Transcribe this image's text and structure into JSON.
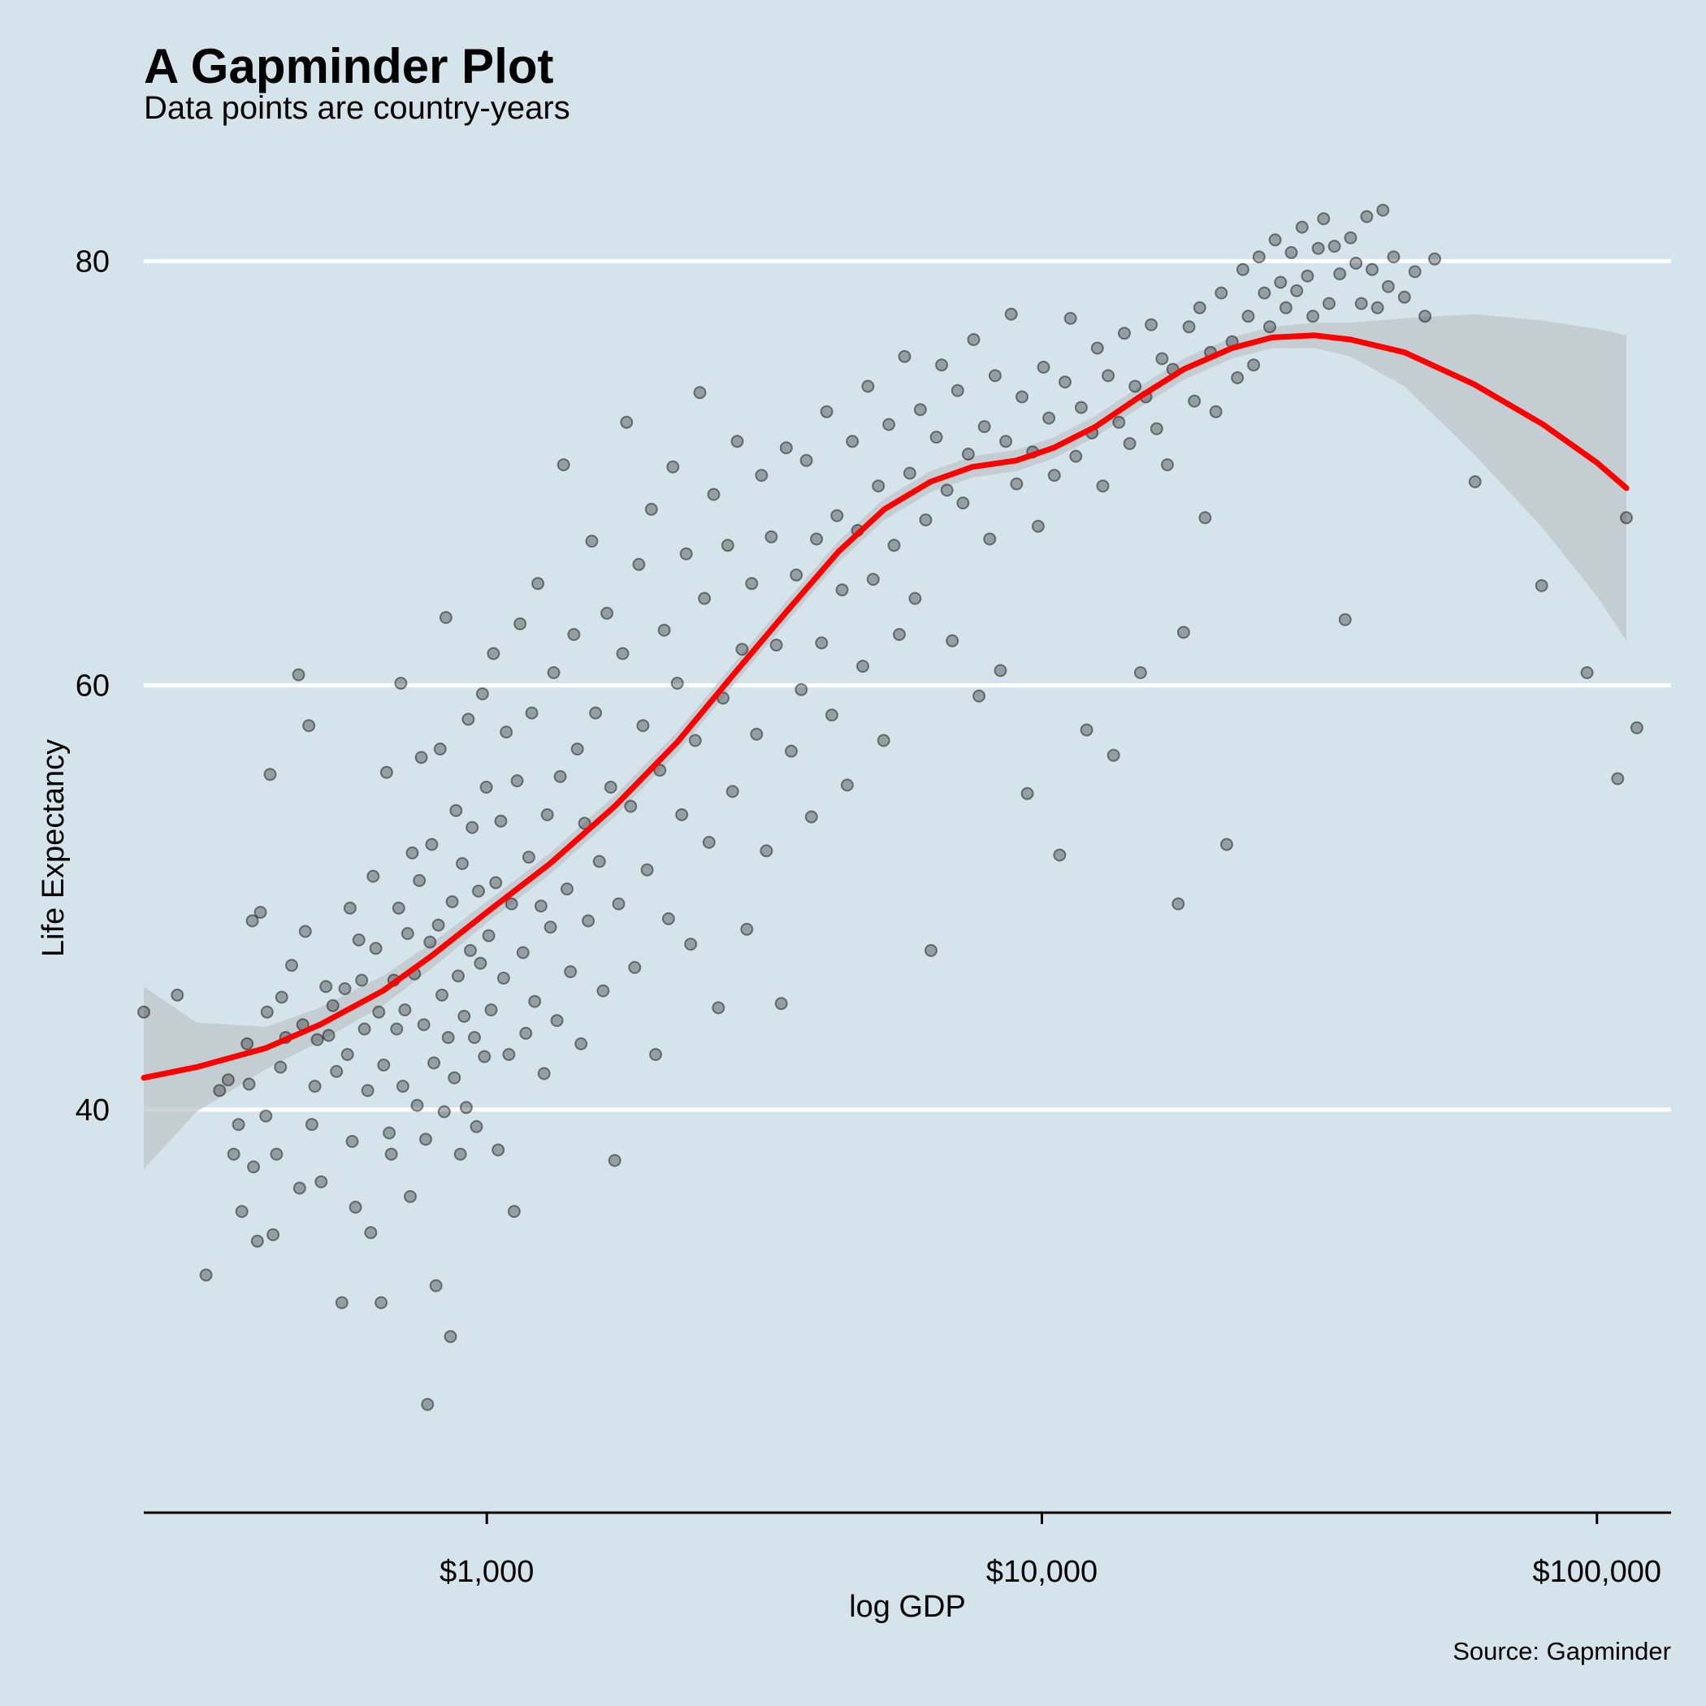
{
  "chart_data": {
    "type": "scatter",
    "title": "A Gapminder Plot",
    "subtitle": "Data points are country-years",
    "caption": "Source: Gapminder",
    "xlabel": "log GDP",
    "ylabel": "Life Expectancy",
    "x_scale": "log10",
    "xlim": [
      241,
      136000
    ],
    "ylim": [
      21,
      83.5
    ],
    "x_ticks": [
      {
        "value": 1000,
        "label": "$1,000"
      },
      {
        "value": 10000,
        "label": "$10,000"
      },
      {
        "value": 100000,
        "label": "$100,000"
      }
    ],
    "y_ticks": [
      {
        "value": 40,
        "label": "40"
      },
      {
        "value": 60,
        "label": "60"
      },
      {
        "value": 80,
        "label": "80"
      }
    ],
    "grid": {
      "major_y": true,
      "major_x": false,
      "color": "#ffffff"
    },
    "colors": {
      "background": "#d5e4eb",
      "points": "#000000",
      "smooth_line": "#ff0000",
      "confidence_band": "#bdc5ca",
      "axis_line": "#000000"
    },
    "point_opacity": 0.3,
    "point_sample_note": "Country-year points are estimated from the scatter; outliers and key clusters included.",
    "points": [
      [
        241,
        44.6
      ],
      [
        277,
        45.4
      ],
      [
        312,
        32.2
      ],
      [
        330,
        40.9
      ],
      [
        342,
        41.4
      ],
      [
        350,
        37.9
      ],
      [
        357,
        39.3
      ],
      [
        362,
        35.2
      ],
      [
        370,
        43.1
      ],
      [
        373,
        41.2
      ],
      [
        378,
        48.9
      ],
      [
        380,
        37.3
      ],
      [
        386,
        33.8
      ],
      [
        391,
        49.3
      ],
      [
        400,
        39.7
      ],
      [
        402,
        44.6
      ],
      [
        407,
        55.8
      ],
      [
        412,
        34.1
      ],
      [
        418,
        37.9
      ],
      [
        425,
        42.0
      ],
      [
        427,
        45.3
      ],
      [
        434,
        43.4
      ],
      [
        445,
        46.8
      ],
      [
        458,
        60.5
      ],
      [
        460,
        36.3
      ],
      [
        466,
        44.0
      ],
      [
        471,
        48.4
      ],
      [
        478,
        58.1
      ],
      [
        484,
        39.3
      ],
      [
        490,
        41.1
      ],
      [
        495,
        43.3
      ],
      [
        503,
        36.6
      ],
      [
        513,
        45.8
      ],
      [
        519,
        43.5
      ],
      [
        528,
        44.9
      ],
      [
        536,
        41.8
      ],
      [
        548,
        30.9
      ],
      [
        555,
        45.7
      ],
      [
        561,
        42.6
      ],
      [
        567,
        49.5
      ],
      [
        572,
        38.5
      ],
      [
        580,
        35.4
      ],
      [
        588,
        48.0
      ],
      [
        595,
        46.1
      ],
      [
        602,
        43.8
      ],
      [
        610,
        40.9
      ],
      [
        618,
        34.2
      ],
      [
        624,
        51.0
      ],
      [
        631,
        47.6
      ],
      [
        639,
        44.6
      ],
      [
        645,
        30.9
      ],
      [
        652,
        42.1
      ],
      [
        660,
        55.9
      ],
      [
        667,
        38.9
      ],
      [
        673,
        37.9
      ],
      [
        680,
        46.1
      ],
      [
        688,
        43.8
      ],
      [
        694,
        49.5
      ],
      [
        700,
        60.1
      ],
      [
        706,
        41.1
      ],
      [
        712,
        44.7
      ],
      [
        720,
        48.3
      ],
      [
        728,
        35.9
      ],
      [
        734,
        52.1
      ],
      [
        741,
        46.4
      ],
      [
        749,
        40.2
      ],
      [
        756,
        50.8
      ],
      [
        762,
        56.6
      ],
      [
        770,
        44.0
      ],
      [
        776,
        38.6
      ],
      [
        782,
        26.1
      ],
      [
        790,
        47.9
      ],
      [
        796,
        52.5
      ],
      [
        803,
        42.2
      ],
      [
        810,
        31.7
      ],
      [
        818,
        48.7
      ],
      [
        824,
        57.0
      ],
      [
        830,
        45.4
      ],
      [
        838,
        39.9
      ],
      [
        844,
        63.2
      ],
      [
        852,
        43.4
      ],
      [
        860,
        29.3
      ],
      [
        866,
        49.8
      ],
      [
        874,
        41.5
      ],
      [
        880,
        54.1
      ],
      [
        888,
        46.3
      ],
      [
        896,
        37.9
      ],
      [
        903,
        51.6
      ],
      [
        910,
        44.4
      ],
      [
        918,
        40.1
      ],
      [
        926,
        58.4
      ],
      [
        934,
        47.5
      ],
      [
        941,
        53.3
      ],
      [
        950,
        43.4
      ],
      [
        958,
        39.2
      ],
      [
        966,
        50.3
      ],
      [
        974,
        46.9
      ],
      [
        982,
        59.6
      ],
      [
        990,
        42.5
      ],
      [
        998,
        55.2
      ],
      [
        1008,
        48.2
      ],
      [
        1018,
        44.7
      ],
      [
        1028,
        61.5
      ],
      [
        1038,
        50.7
      ],
      [
        1048,
        38.1
      ],
      [
        1060,
        53.6
      ],
      [
        1072,
        46.2
      ],
      [
        1084,
        57.8
      ],
      [
        1096,
        42.6
      ],
      [
        1108,
        49.7
      ],
      [
        1120,
        35.2
      ],
      [
        1134,
        55.5
      ],
      [
        1148,
        62.9
      ],
      [
        1162,
        47.4
      ],
      [
        1176,
        43.6
      ],
      [
        1190,
        51.9
      ],
      [
        1205,
        58.7
      ],
      [
        1220,
        45.1
      ],
      [
        1236,
        64.8
      ],
      [
        1252,
        49.6
      ],
      [
        1268,
        41.7
      ],
      [
        1285,
        53.9
      ],
      [
        1302,
        48.6
      ],
      [
        1320,
        60.6
      ],
      [
        1338,
        44.2
      ],
      [
        1356,
        55.7
      ],
      [
        1375,
        70.4
      ],
      [
        1395,
        50.4
      ],
      [
        1415,
        46.5
      ],
      [
        1435,
        62.4
      ],
      [
        1456,
        57.0
      ],
      [
        1478,
        43.1
      ],
      [
        1500,
        53.5
      ],
      [
        1523,
        48.9
      ],
      [
        1546,
        66.8
      ],
      [
        1570,
        58.7
      ],
      [
        1595,
        51.7
      ],
      [
        1620,
        45.6
      ],
      [
        1646,
        63.4
      ],
      [
        1672,
        55.2
      ],
      [
        1700,
        37.6
      ],
      [
        1728,
        49.7
      ],
      [
        1757,
        61.5
      ],
      [
        1786,
        72.4
      ],
      [
        1816,
        54.3
      ],
      [
        1847,
        46.7
      ],
      [
        1879,
        65.7
      ],
      [
        1911,
        58.1
      ],
      [
        1945,
        51.3
      ],
      [
        1979,
        68.3
      ],
      [
        2014,
        42.6
      ],
      [
        2050,
        56.0
      ],
      [
        2087,
        62.6
      ],
      [
        2125,
        49.0
      ],
      [
        2164,
        70.3
      ],
      [
        2204,
        60.1
      ],
      [
        2245,
        53.9
      ],
      [
        2287,
        66.2
      ],
      [
        2330,
        47.8
      ],
      [
        2374,
        57.4
      ],
      [
        2420,
        73.8
      ],
      [
        2466,
        64.1
      ],
      [
        2514,
        52.6
      ],
      [
        2563,
        69.0
      ],
      [
        2613,
        44.8
      ],
      [
        2664,
        59.4
      ],
      [
        2717,
        66.6
      ],
      [
        2771,
        55.0
      ],
      [
        2826,
        71.5
      ],
      [
        2883,
        61.7
      ],
      [
        2941,
        48.5
      ],
      [
        3001,
        64.8
      ],
      [
        3062,
        57.7
      ],
      [
        3125,
        69.9
      ],
      [
        3189,
        52.2
      ],
      [
        3255,
        67.0
      ],
      [
        3323,
        61.9
      ],
      [
        3392,
        45.0
      ],
      [
        3463,
        71.2
      ],
      [
        3536,
        56.9
      ],
      [
        3610,
        65.2
      ],
      [
        3686,
        59.8
      ],
      [
        3764,
        70.6
      ],
      [
        3844,
        53.8
      ],
      [
        3926,
        66.9
      ],
      [
        4010,
        62.0
      ],
      [
        4096,
        72.9
      ],
      [
        4184,
        58.6
      ],
      [
        4274,
        68.0
      ],
      [
        4366,
        64.5
      ],
      [
        4460,
        55.3
      ],
      [
        4556,
        71.5
      ],
      [
        4655,
        67.3
      ],
      [
        4756,
        60.9
      ],
      [
        4860,
        74.1
      ],
      [
        4966,
        65.0
      ],
      [
        5075,
        69.4
      ],
      [
        5186,
        57.4
      ],
      [
        5300,
        72.3
      ],
      [
        5416,
        66.6
      ],
      [
        5535,
        62.4
      ],
      [
        5657,
        75.5
      ],
      [
        5782,
        70.0
      ],
      [
        5910,
        64.1
      ],
      [
        6041,
        73.0
      ],
      [
        6175,
        67.8
      ],
      [
        6313,
        47.5
      ],
      [
        6454,
        71.7
      ],
      [
        6598,
        75.1
      ],
      [
        6745,
        69.2
      ],
      [
        6896,
        62.1
      ],
      [
        7050,
        73.9
      ],
      [
        7208,
        68.6
      ],
      [
        7370,
        70.9
      ],
      [
        7535,
        76.3
      ],
      [
        7705,
        59.5
      ],
      [
        7878,
        72.2
      ],
      [
        8055,
        66.9
      ],
      [
        8236,
        74.6
      ],
      [
        8421,
        60.7
      ],
      [
        8611,
        71.5
      ],
      [
        8805,
        77.5
      ],
      [
        9004,
        69.5
      ],
      [
        9207,
        73.6
      ],
      [
        9415,
        54.9
      ],
      [
        9627,
        71.0
      ],
      [
        9845,
        67.5
      ],
      [
        10067,
        75.0
      ],
      [
        10295,
        72.6
      ],
      [
        10528,
        69.9
      ],
      [
        10766,
        52.0
      ],
      [
        11009,
        74.3
      ],
      [
        11258,
        77.3
      ],
      [
        11513,
        70.8
      ],
      [
        11773,
        73.1
      ],
      [
        12039,
        57.9
      ],
      [
        12311,
        71.9
      ],
      [
        12589,
        75.9
      ],
      [
        12874,
        69.4
      ],
      [
        13165,
        74.6
      ],
      [
        13462,
        56.7
      ],
      [
        13766,
        72.4
      ],
      [
        14077,
        76.6
      ],
      [
        14396,
        71.4
      ],
      [
        14721,
        74.1
      ],
      [
        15054,
        60.6
      ],
      [
        15394,
        73.6
      ],
      [
        15742,
        77.0
      ],
      [
        16097,
        72.1
      ],
      [
        16461,
        75.4
      ],
      [
        16833,
        70.4
      ],
      [
        17213,
        74.9
      ],
      [
        17602,
        49.7
      ],
      [
        18000,
        62.5
      ],
      [
        18407,
        76.9
      ],
      [
        18823,
        73.4
      ],
      [
        19248,
        77.8
      ],
      [
        19683,
        67.9
      ],
      [
        20128,
        75.7
      ],
      [
        20583,
        72.9
      ],
      [
        21048,
        78.5
      ],
      [
        21524,
        52.5
      ],
      [
        22010,
        76.2
      ],
      [
        22508,
        74.5
      ],
      [
        23016,
        79.6
      ],
      [
        23536,
        77.4
      ],
      [
        24068,
        75.1
      ],
      [
        24612,
        80.2
      ],
      [
        25168,
        78.5
      ],
      [
        25737,
        76.9
      ],
      [
        26318,
        81.0
      ],
      [
        26913,
        79.0
      ],
      [
        27521,
        77.8
      ],
      [
        28143,
        80.4
      ],
      [
        28779,
        78.6
      ],
      [
        29429,
        81.6
      ],
      [
        30095,
        79.3
      ],
      [
        30775,
        77.4
      ],
      [
        31470,
        80.6
      ],
      [
        32181,
        82.0
      ],
      [
        32908,
        78.0
      ],
      [
        33652,
        80.7
      ],
      [
        34412,
        79.4
      ],
      [
        35190,
        63.1
      ],
      [
        35985,
        81.1
      ],
      [
        36798,
        79.9
      ],
      [
        37629,
        78.0
      ],
      [
        38480,
        82.1
      ],
      [
        39349,
        79.6
      ],
      [
        40238,
        77.8
      ],
      [
        41147,
        82.4
      ],
      [
        42077,
        78.8
      ],
      [
        43027,
        80.2
      ],
      [
        45000,
        78.3
      ],
      [
        47000,
        79.5
      ],
      [
        49000,
        77.4
      ],
      [
        51000,
        80.1
      ],
      [
        60300,
        69.6
      ],
      [
        79500,
        64.7
      ],
      [
        96000,
        60.6
      ],
      [
        109000,
        55.6
      ],
      [
        113000,
        67.9
      ],
      [
        118000,
        58.0
      ]
    ],
    "smooth": {
      "x": [
        241,
        300,
        400,
        500,
        650,
        800,
        1000,
        1300,
        1700,
        2200,
        2800,
        3500,
        4300,
        5200,
        6300,
        7500,
        9000,
        10500,
        12500,
        15000,
        18000,
        22000,
        26000,
        31000,
        36000,
        45000,
        60000,
        80000,
        100000,
        113000
      ],
      "y": [
        41.5,
        42.0,
        42.9,
        44.0,
        45.6,
        47.3,
        49.3,
        51.6,
        54.3,
        57.3,
        60.6,
        63.6,
        66.3,
        68.3,
        69.6,
        70.3,
        70.6,
        71.2,
        72.2,
        73.6,
        74.9,
        75.9,
        76.4,
        76.5,
        76.3,
        75.7,
        74.2,
        72.3,
        70.5,
        69.3
      ],
      "lo": [
        37.2,
        39.9,
        41.9,
        43.2,
        44.9,
        46.7,
        48.8,
        51.1,
        53.8,
        56.8,
        60.1,
        63.1,
        65.8,
        67.8,
        69.1,
        69.8,
        70.1,
        70.7,
        71.7,
        73.1,
        74.4,
        75.4,
        75.9,
        75.9,
        75.5,
        74.1,
        70.9,
        67.4,
        64.2,
        62.1
      ],
      "hi": [
        45.8,
        44.1,
        43.9,
        44.8,
        46.3,
        47.9,
        49.8,
        52.1,
        54.8,
        57.8,
        61.1,
        64.1,
        66.8,
        68.8,
        70.1,
        70.8,
        71.1,
        71.7,
        72.7,
        74.1,
        75.4,
        76.4,
        76.9,
        77.1,
        77.1,
        77.3,
        77.5,
        77.2,
        76.8,
        76.5
      ]
    }
  }
}
